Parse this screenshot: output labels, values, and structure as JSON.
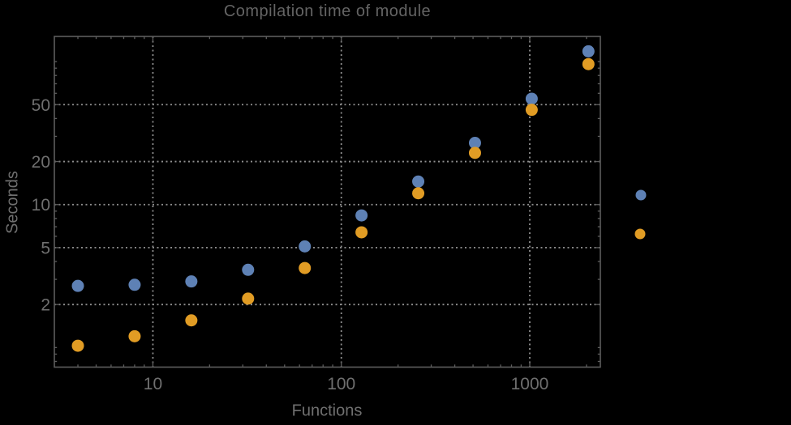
{
  "window": {
    "background": "#000000"
  },
  "chart_data": {
    "type": "scatter",
    "title": "Compilation time of module",
    "xlabel": "Functions",
    "ylabel": "Seconds",
    "x_scale": "log",
    "y_scale": "log",
    "x_ticks": [
      10,
      100,
      1000
    ],
    "x_tick_labels": [
      "10",
      "100",
      "1000"
    ],
    "y_ticks": [
      2,
      5,
      10,
      20,
      50
    ],
    "y_tick_labels": [
      "2",
      "5",
      "10",
      "20",
      "50"
    ],
    "x_range": [
      3.0,
      2369
    ],
    "y_range": [
      0.73,
      150
    ],
    "grid": {
      "show": true,
      "style": "dotted",
      "at_x": [
        10,
        100,
        1000
      ],
      "at_y": [
        2,
        5,
        10,
        20,
        50
      ]
    },
    "legend": {
      "position": "outside-right",
      "labels_visible": false,
      "markers": [
        {
          "series": "series-1",
          "color": "#5E81B5"
        },
        {
          "series": "series-2",
          "color": "#E19C24"
        }
      ]
    },
    "series": [
      {
        "name": "series-1",
        "color": "#5E81B5",
        "x": [
          4,
          8,
          16,
          32,
          64,
          128,
          256,
          512,
          1024,
          2048
        ],
        "y": [
          2.7,
          2.75,
          2.9,
          3.5,
          5.1,
          8.4,
          14.5,
          27,
          55,
          118
        ]
      },
      {
        "name": "series-2",
        "color": "#E19C24",
        "x": [
          4,
          8,
          16,
          32,
          64,
          128,
          256,
          512,
          1024,
          2048
        ],
        "y": [
          1.03,
          1.2,
          1.55,
          2.2,
          3.6,
          6.4,
          12,
          23,
          46,
          96
        ]
      }
    ],
    "colors": {
      "background": "#000000",
      "title_text": "#646464",
      "label_text": "#6f6f6f",
      "frame": "#5d5d5d",
      "gridlines": "#8f8f8f"
    }
  }
}
